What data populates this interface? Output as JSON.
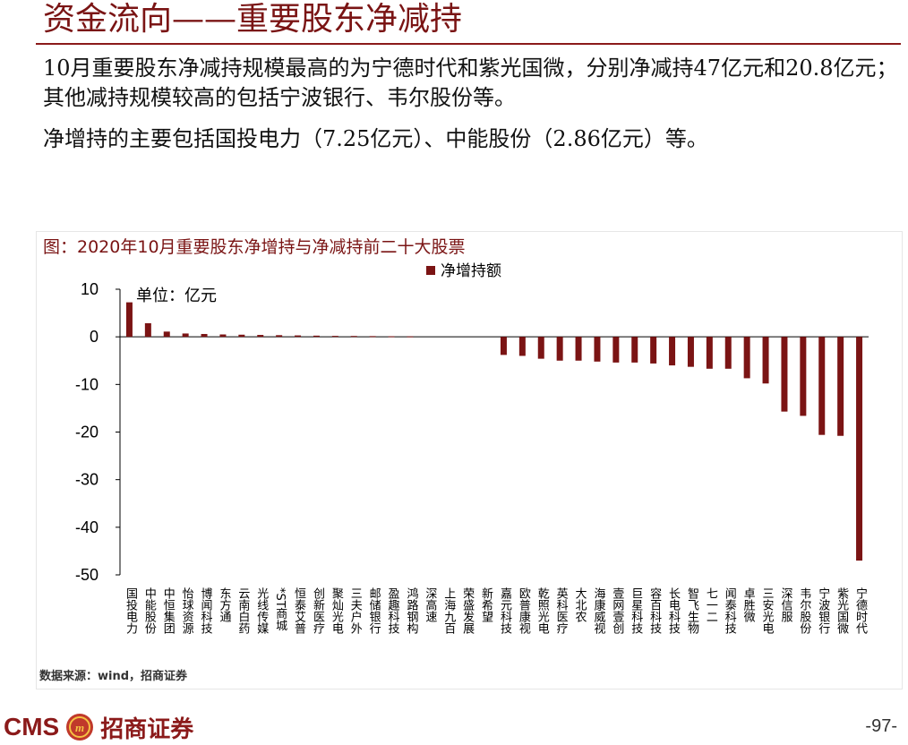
{
  "header": {
    "title": "资金流向——重要股东净减持"
  },
  "summary": {
    "line1": "10月重要股东净减持规模最高的为宁德时代和紫光国微，分别净减持47亿元和20.8亿元；其他减持规模较高的包括宁波银行、韦尔股份等。",
    "line2": "净增持的主要包括国投电力（7.25亿元）、中能股份（2.86亿元）等。"
  },
  "chart_data": {
    "type": "bar",
    "title": "图：2020年10月重要股东净增持与净减持前二十大股票",
    "unit_label": "单位：亿元",
    "legend": "净增持额",
    "legend_position": "top",
    "ylim": [
      -50,
      10
    ],
    "yticks": [
      10,
      0,
      -10,
      -20,
      -30,
      -40,
      -50
    ],
    "grid": false,
    "bar_color": "#7b1414",
    "categories": [
      "国投电力",
      "中能股份",
      "中恒集团",
      "怡球资源",
      "博闻科技",
      "东方通",
      "云南白药",
      "光线传媒",
      "*ST商城",
      "恒泰艾普",
      "创新医疗",
      "聚灿光电",
      "三夫户外",
      "邮储银行",
      "盈趣科技",
      "鸿路钢构",
      "深高速",
      "上海九百",
      "荣盛发展",
      "新希望",
      "嘉元科技",
      "欧普康视",
      "乾照光电",
      "英科医疗",
      "大北农",
      "海康威视",
      "壹网壹创",
      "巨星科技",
      "容百科技",
      "长电科技",
      "智飞生物",
      "七一二",
      "闻泰科技",
      "卓胜微",
      "三安光电",
      "深信服",
      "韦尔股份",
      "宁波银行",
      "紫光国微",
      "宁德时代"
    ],
    "values": [
      7.25,
      2.86,
      1.1,
      0.7,
      0.6,
      0.5,
      0.45,
      0.4,
      0.35,
      0.3,
      0.25,
      0.2,
      0.18,
      0.15,
      0.12,
      0.1,
      0.0,
      0.0,
      0.0,
      0.0,
      -3.8,
      -4.0,
      -4.6,
      -5.0,
      -5.0,
      -5.2,
      -5.4,
      -5.4,
      -5.6,
      -6.0,
      -6.3,
      -6.7,
      -6.7,
      -8.7,
      -9.8,
      -15.7,
      -16.6,
      -20.6,
      -20.8,
      -47.0
    ]
  },
  "footer": {
    "source": "数据来源：wind，招商证券",
    "brand_latin": "CMS",
    "brand_cn": "招商证券",
    "page": "-97-",
    "brand_color": "#8b1a1a"
  }
}
